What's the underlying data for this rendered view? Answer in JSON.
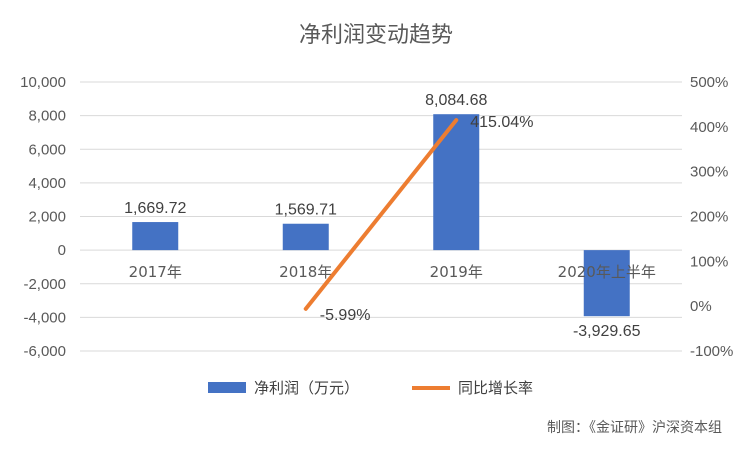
{
  "chart_data": {
    "type": "bar",
    "title": "净利润变动趋势",
    "categories": [
      "2017年",
      "2018年",
      "2019年",
      "2020年上半年"
    ],
    "series": [
      {
        "name": "净利润（万元）",
        "type": "bar",
        "axis": "left",
        "color": "#4472c4",
        "values": [
          1669.72,
          1569.71,
          8084.68,
          -3929.65
        ],
        "labels": [
          "1,669.72",
          "1,569.71",
          "8,084.68",
          "-3,929.65"
        ]
      },
      {
        "name": "同比增长率",
        "type": "line",
        "axis": "right",
        "color": "#ed7d31",
        "values": [
          null,
          -5.99,
          415.04,
          null
        ],
        "labels": [
          "",
          "-5.99%",
          "415.04%",
          ""
        ]
      }
    ],
    "y_left": {
      "min": -6000,
      "max": 10000,
      "step": 2000,
      "tick_labels": [
        "10,000",
        "8,000",
        "6,000",
        "4,000",
        "2,000",
        "0",
        "-2,000",
        "-4,000",
        "-6,000"
      ]
    },
    "y_right": {
      "min": -100,
      "max": 500,
      "step": 100,
      "tick_labels": [
        "500%",
        "400%",
        "300%",
        "200%",
        "100%",
        "0%",
        "-100%"
      ]
    },
    "grid": true,
    "legend_position": "bottom",
    "credit": "制图：《金证研》沪深资本组"
  }
}
